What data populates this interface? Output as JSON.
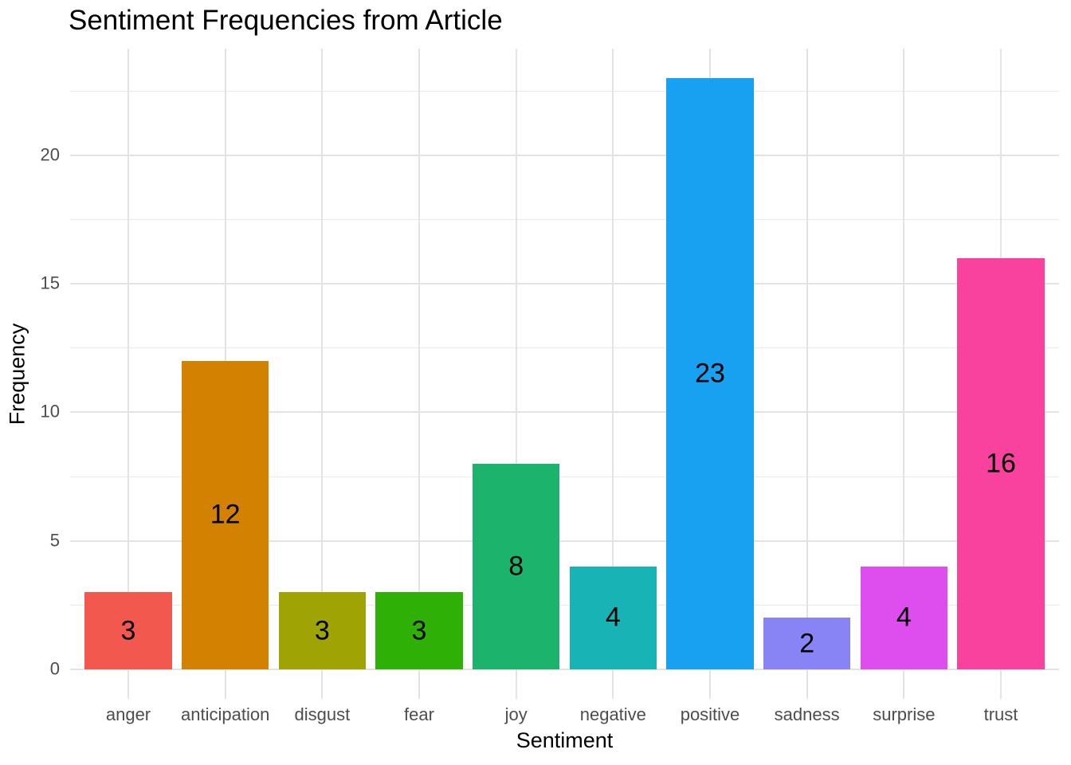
{
  "chart_data": {
    "type": "bar",
    "title": "Sentiment Frequencies from Article",
    "xlabel": "Sentiment",
    "ylabel": "Frequency",
    "categories": [
      "anger",
      "anticipation",
      "disgust",
      "fear",
      "joy",
      "negative",
      "positive",
      "sadness",
      "surprise",
      "trust"
    ],
    "values": [
      3,
      12,
      3,
      3,
      8,
      4,
      23,
      2,
      4,
      16
    ],
    "bar_labels": [
      "3",
      "12",
      "3",
      "3",
      "8",
      "4",
      "23",
      "2",
      "4",
      "16"
    ],
    "bar_colors": [
      "#F3584E",
      "#D28100",
      "#9FA303",
      "#2FB007",
      "#1CB36C",
      "#17B3B5",
      "#18A0F1",
      "#8884F6",
      "#DE4DED",
      "#F9429E"
    ],
    "y_ticks": [
      "0",
      "5",
      "10",
      "15",
      "20"
    ],
    "y_tick_values": [
      0,
      5,
      10,
      15,
      20
    ],
    "y_minor_tick_values": [
      2.5,
      7.5,
      12.5,
      17.5,
      22.5
    ],
    "ylim": [
      -1.15,
      24.15
    ],
    "bar_width_fraction": 0.9,
    "grid": "horizontal major+minor, vertical at categories",
    "legend": "none",
    "value_label_position": "center-of-bar",
    "colors": {
      "background": "#FFFFFF",
      "grid_major": "#E3E3E3",
      "grid_minor": "#E9E9E9",
      "tick_label": "#4D4D4D",
      "title": "#000000",
      "axis_title": "#000000",
      "bar_label": "#000000"
    }
  }
}
